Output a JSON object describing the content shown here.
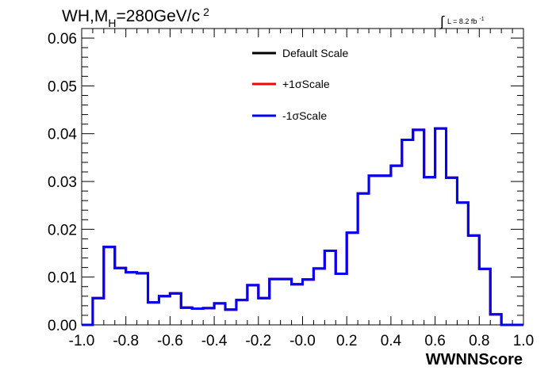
{
  "chart_data": {
    "type": "line",
    "style": "step-histogram",
    "title": {
      "prefix": "WH,M",
      "subscript": "H",
      "main": "=280GeV/c",
      "superscript": "2"
    },
    "lumi": {
      "integral_symbol": "∫",
      "text": "L = 8.2 fb",
      "superscript": "-1"
    },
    "xlabel": "WWNNScore",
    "ylabel": "",
    "xlim": [
      -1.0,
      1.0
    ],
    "ylim": [
      0,
      0.062
    ],
    "x_ticks": [
      "-1.0",
      "-0.8",
      "-0.6",
      "-0.4",
      "-0.2",
      "-0.0",
      "0.2",
      "0.4",
      "0.6",
      "0.8",
      "1.0"
    ],
    "x_tick_values": [
      -1.0,
      -0.8,
      -0.6,
      -0.4,
      -0.2,
      0.0,
      0.2,
      0.4,
      0.6,
      0.8,
      1.0
    ],
    "y_ticks": [
      "0.00",
      "0.01",
      "0.02",
      "0.03",
      "0.04",
      "0.05",
      "0.06"
    ],
    "y_tick_values": [
      0.0,
      0.01,
      0.02,
      0.03,
      0.04,
      0.05,
      0.06
    ],
    "grid": false,
    "legend_position": "top-center",
    "bin_edges": [
      -1.0,
      -0.95,
      -0.9,
      -0.85,
      -0.8,
      -0.75,
      -0.7,
      -0.65,
      -0.6,
      -0.55,
      -0.5,
      -0.45,
      -0.4,
      -0.35,
      -0.3,
      -0.25,
      -0.2,
      -0.15,
      -0.1,
      -0.05,
      0.0,
      0.05,
      0.1,
      0.15,
      0.2,
      0.25,
      0.3,
      0.35,
      0.4,
      0.45,
      0.5,
      0.55,
      0.6,
      0.65,
      0.7,
      0.75,
      0.8,
      0.85,
      0.9,
      0.95,
      1.0
    ],
    "series": [
      {
        "name": "Default Scale",
        "color": "#000000",
        "values": [
          0.0,
          0.0056,
          0.0163,
          0.0119,
          0.011,
          0.0108,
          0.0047,
          0.006,
          0.0066,
          0.0036,
          0.0034,
          0.0035,
          0.0045,
          0.0032,
          0.0052,
          0.0083,
          0.0056,
          0.0096,
          0.0096,
          0.0085,
          0.0095,
          0.0118,
          0.0155,
          0.0107,
          0.0193,
          0.0275,
          0.0312,
          0.0312,
          0.0333,
          0.0387,
          0.0408,
          0.0309,
          0.0411,
          0.0308,
          0.0256,
          0.0187,
          0.0117,
          0.0022,
          0.0,
          0.0
        ]
      },
      {
        "name": "+1σScale",
        "color": "#ff0000",
        "values": [
          0.0,
          0.0056,
          0.0163,
          0.0119,
          0.011,
          0.0108,
          0.0047,
          0.006,
          0.0066,
          0.0036,
          0.0034,
          0.0035,
          0.0045,
          0.0032,
          0.0052,
          0.0083,
          0.0056,
          0.0096,
          0.0096,
          0.0085,
          0.0095,
          0.0118,
          0.0155,
          0.0107,
          0.0193,
          0.0275,
          0.0312,
          0.0312,
          0.0333,
          0.0387,
          0.0408,
          0.0309,
          0.0411,
          0.0308,
          0.0256,
          0.0187,
          0.0117,
          0.0022,
          0.0,
          0.0
        ]
      },
      {
        "name": "-1σScale",
        "color": "#0000ff",
        "values": [
          0.0,
          0.0056,
          0.0163,
          0.0119,
          0.011,
          0.0108,
          0.0047,
          0.006,
          0.0066,
          0.0036,
          0.0034,
          0.0035,
          0.0045,
          0.0032,
          0.0052,
          0.0083,
          0.0056,
          0.0096,
          0.0096,
          0.0085,
          0.0095,
          0.0118,
          0.0155,
          0.0107,
          0.0193,
          0.0275,
          0.0312,
          0.0312,
          0.0333,
          0.0387,
          0.0408,
          0.0309,
          0.0411,
          0.0308,
          0.0256,
          0.0187,
          0.0117,
          0.0022,
          0.0,
          0.0
        ]
      }
    ]
  }
}
